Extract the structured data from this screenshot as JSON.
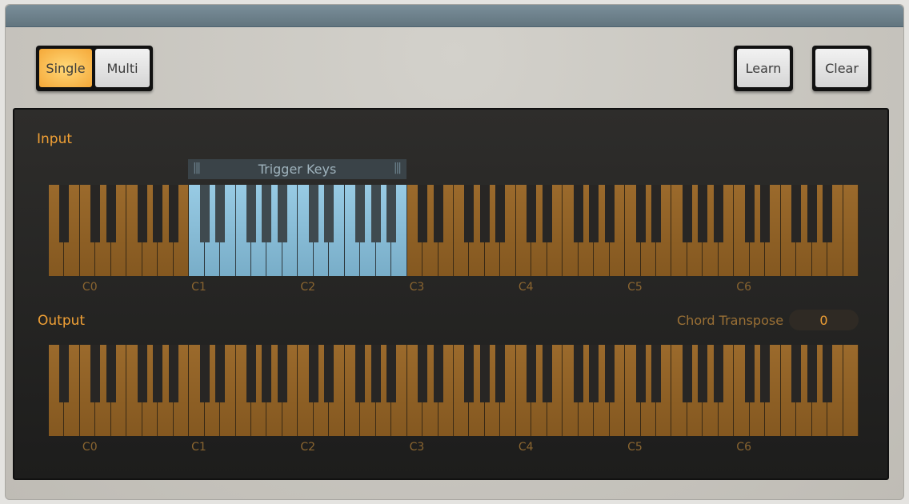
{
  "toolbar": {
    "mode_single": "Single",
    "mode_multi": "Multi",
    "active_mode": "Single",
    "learn": "Learn",
    "clear": "Clear"
  },
  "input": {
    "label": "Input",
    "trigger_keys_label": "Trigger Keys",
    "trigger_range": {
      "from": "C1",
      "to": "B2"
    },
    "selected_color": "#8fc3de"
  },
  "output": {
    "label": "Output",
    "chord_transpose_label": "Chord Transpose",
    "chord_transpose_value": "0"
  },
  "keyboard": {
    "low": "A-1",
    "high": "C7",
    "octave_labels": [
      "C0",
      "C1",
      "C2",
      "C3",
      "C4",
      "C5",
      "C6"
    ],
    "key_color": "#9b6a2c"
  }
}
